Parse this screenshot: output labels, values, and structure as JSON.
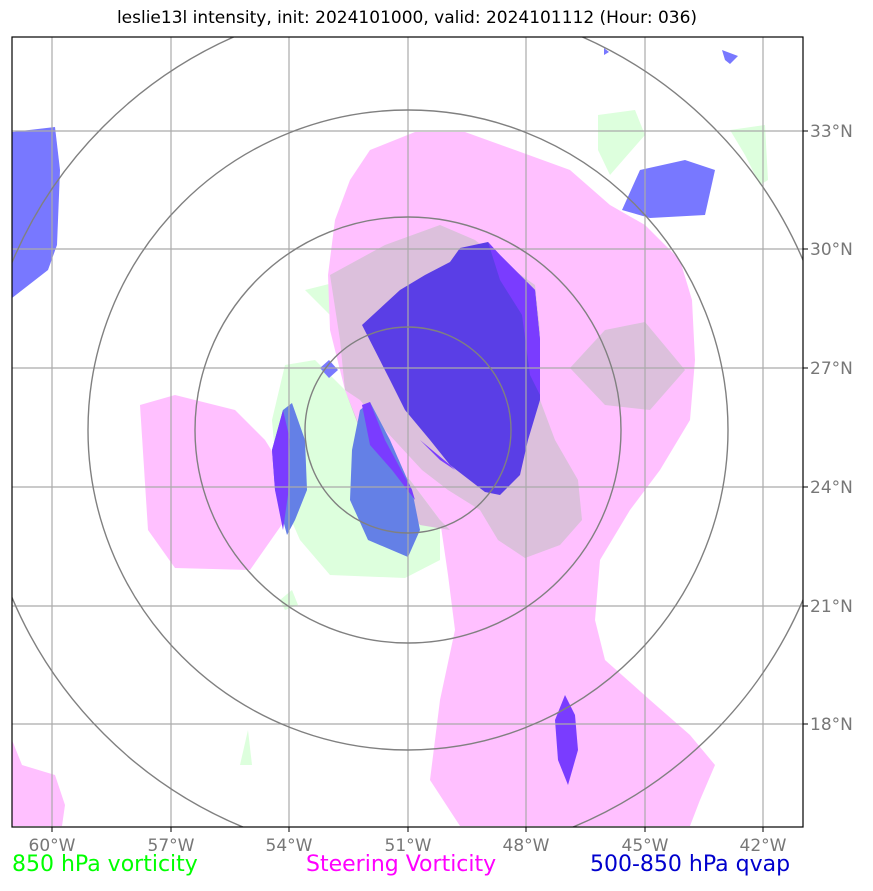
{
  "title": "leslie13l intensity, init: 2024101000, valid: 2024101112 (Hour: 036)",
  "lon_labels": [
    "60°W",
    "57°W",
    "54°W",
    "51°W",
    "48°W",
    "45°W",
    "42°W"
  ],
  "lat_labels": [
    "33°N",
    "30°N",
    "27°N",
    "24°N",
    "21°N",
    "18°N"
  ],
  "legend": {
    "vort850": {
      "label": "850 hPa vorticity",
      "color": "#00ff00"
    },
    "steering": {
      "label": "Steering Vorticity",
      "color": "#ff00ff"
    },
    "qvap": {
      "label": "500-850 hPa qvap",
      "color": "#0000cd"
    }
  },
  "colors": {
    "steering_fill": "#ffc0ff",
    "vort850_fill": "#ddffdd",
    "overlap_fill": "#dcc0dc",
    "qvap_fill": "#7878ff",
    "qvap_dark": "#5a3ee6",
    "qvap_violet": "#7a3cff",
    "qvap_mid": "#6480e6",
    "ring": "#808080",
    "grid": "#aaaaaa"
  }
}
